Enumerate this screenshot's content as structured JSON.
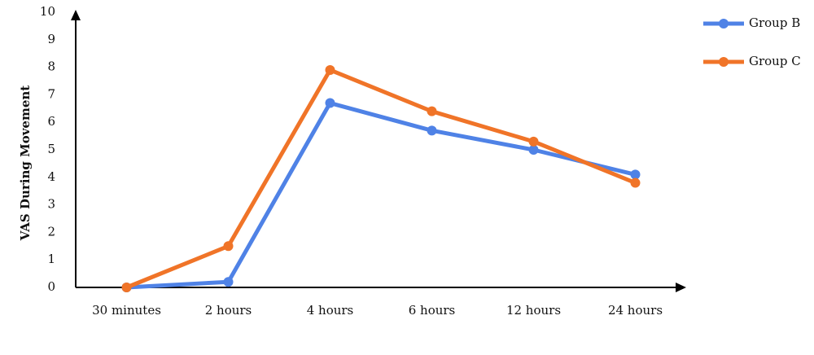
{
  "chart_data": {
    "type": "line",
    "y_label": "VAS During Movement",
    "categories": [
      "30 minutes",
      "2 hours",
      "4 hours",
      "6 hours",
      "12 hours",
      "24 hours"
    ],
    "series": [
      {
        "name": "Group B",
        "color": "#4f82e6",
        "values": [
          0,
          0.2,
          6.7,
          5.7,
          5.0,
          4.1
        ]
      },
      {
        "name": "Group C",
        "color": "#f07428",
        "values": [
          0,
          1.5,
          7.9,
          6.4,
          5.3,
          3.8
        ]
      }
    ],
    "ylim": [
      0,
      10
    ],
    "yticks": [
      0,
      1,
      2,
      3,
      4,
      5,
      6,
      7,
      8,
      9,
      10
    ],
    "grid": false,
    "legend": "top-right"
  }
}
